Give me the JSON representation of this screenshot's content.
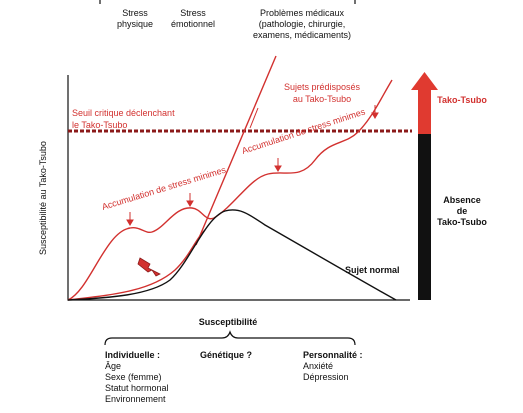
{
  "top_labels": [
    {
      "lines": [
        "Stress",
        "physique"
      ]
    },
    {
      "lines": [
        "Stress",
        "émotionnel"
      ]
    },
    {
      "lines": [
        "Problèmes médicaux",
        "(pathologie, chirurgie,",
        "examens, médicaments)"
      ]
    }
  ],
  "threshold": {
    "lines": [
      "Seuil critique déclenchant",
      "le Tako-Tsubo"
    ]
  },
  "predisposed": {
    "lines": [
      "Sujets prédisposés",
      "au Tako-Tsubo"
    ]
  },
  "accumulation_labels": [
    "Accumulation de stress minimes",
    "Accumulation de stress minimes"
  ],
  "normal_label": "Sujet normal",
  "y_axis_label": "Susceptibilité au Tako-Tsubo",
  "right_bar": {
    "top": "Tako-Tsubo",
    "bottom": [
      "Absence",
      "de",
      "Tako-Tsubo"
    ]
  },
  "bottom": {
    "title": "Susceptibilité",
    "groups": [
      {
        "title": "Individuelle :",
        "items": [
          "Âge",
          "Sexe (femme)",
          "Statut hormonal",
          "Environnement"
        ]
      },
      {
        "title": "Génétique ?",
        "items": []
      },
      {
        "title": "Personnalité :",
        "items": [
          "Anxiété",
          "Dépression"
        ]
      }
    ]
  }
}
